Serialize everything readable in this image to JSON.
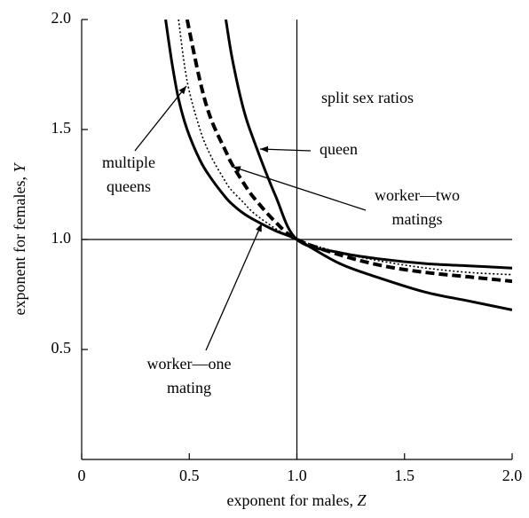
{
  "chart_data": {
    "type": "line",
    "xlabel": {
      "text": "exponent for males, ",
      "var": "Z"
    },
    "ylabel": {
      "text": "exponent for females, ",
      "var": "Y"
    },
    "xlim": [
      0,
      2
    ],
    "ylim": [
      0,
      2
    ],
    "xticks": [
      0,
      0.5,
      {
        "value": 1,
        "label": "1.0"
      },
      1.5,
      {
        "value": 2,
        "label": "2.0"
      }
    ],
    "yticks": [
      0.5,
      {
        "value": 1,
        "label": "1.0"
      },
      1.5,
      {
        "value": 2,
        "label": "2.0"
      }
    ],
    "reference_lines": {
      "x": [
        1
      ],
      "y": [
        1
      ]
    },
    "x": [
      0.39,
      0.42,
      0.45,
      0.49,
      0.55,
      0.6,
      0.67,
      0.7,
      0.75,
      0.8,
      0.9,
      1.0,
      1.2,
      1.4,
      1.6,
      1.8,
      2.0
    ],
    "series": [
      {
        "style": "solid",
        "color": "#000000",
        "values": [
          2.0,
          1.8,
          1.64,
          1.5,
          1.36,
          1.28,
          1.19,
          1.16,
          1.12,
          1.09,
          1.04,
          1.0,
          0.89,
          0.82,
          0.76,
          0.72,
          0.68
        ]
      },
      {
        "style": "dotted",
        "color": "#000000",
        "values": [
          null,
          null,
          2.0,
          1.72,
          1.5,
          1.38,
          1.26,
          1.22,
          1.17,
          1.12,
          1.05,
          1.0,
          0.94,
          0.9,
          0.87,
          0.85,
          0.84
        ]
      },
      {
        "style": "dashed",
        "color": "#000000",
        "values": [
          null,
          null,
          null,
          2.0,
          1.72,
          1.55,
          1.4,
          1.34,
          1.26,
          1.19,
          1.08,
          1.0,
          0.93,
          0.88,
          0.85,
          0.83,
          0.81
        ]
      },
      {
        "style": "solid",
        "color": "#000000",
        "values": [
          null,
          null,
          null,
          null,
          null,
          null,
          2.0,
          1.82,
          1.6,
          1.45,
          1.2,
          1.0,
          0.94,
          0.91,
          0.89,
          0.88,
          0.87
        ]
      }
    ],
    "annotations": [
      [
        "split sex ratios"
      ],
      [
        "queen"
      ],
      [
        "multiple",
        "queens"
      ],
      [
        "worker—two",
        "matings"
      ],
      [
        "worker—one",
        "mating"
      ]
    ]
  }
}
